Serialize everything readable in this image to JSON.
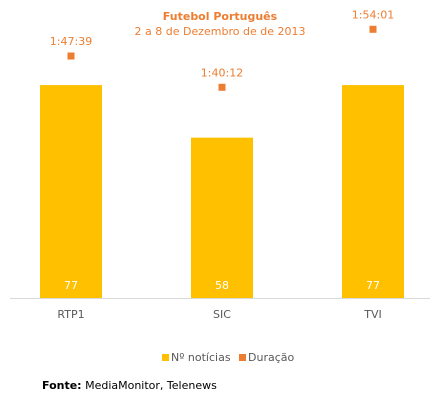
{
  "colors": {
    "title": "#ed7d31",
    "bar": "#ffc000",
    "marker": "#ed7d31",
    "axis": "#d9d9d9",
    "text": "#595959",
    "bar_label": "#ffffff"
  },
  "source": {
    "label": "Fonte:",
    "text": " MediaMonitor, Telenews"
  },
  "chart_data": {
    "type": "bar",
    "title": "Futebol Português",
    "subtitle": "2 a 8 de Dezembro de de 2013",
    "categories": [
      "RTP1",
      "SIC",
      "TVI"
    ],
    "ylim": [
      0,
      100
    ],
    "grid": false,
    "legend_position": "bottom",
    "series": [
      {
        "name": "Nº notícias",
        "type": "bar",
        "values": [
          77,
          58,
          77
        ],
        "data_labels": [
          "77",
          "58",
          "77"
        ]
      },
      {
        "name": "Duração",
        "type": "marker",
        "values_minutes": [
          107.65,
          100.2,
          114.02
        ],
        "data_labels": [
          "1:47:39",
          "1:40:12",
          "1:54:01"
        ]
      }
    ],
    "duration_axis_minutes": [
      50,
      121
    ]
  }
}
